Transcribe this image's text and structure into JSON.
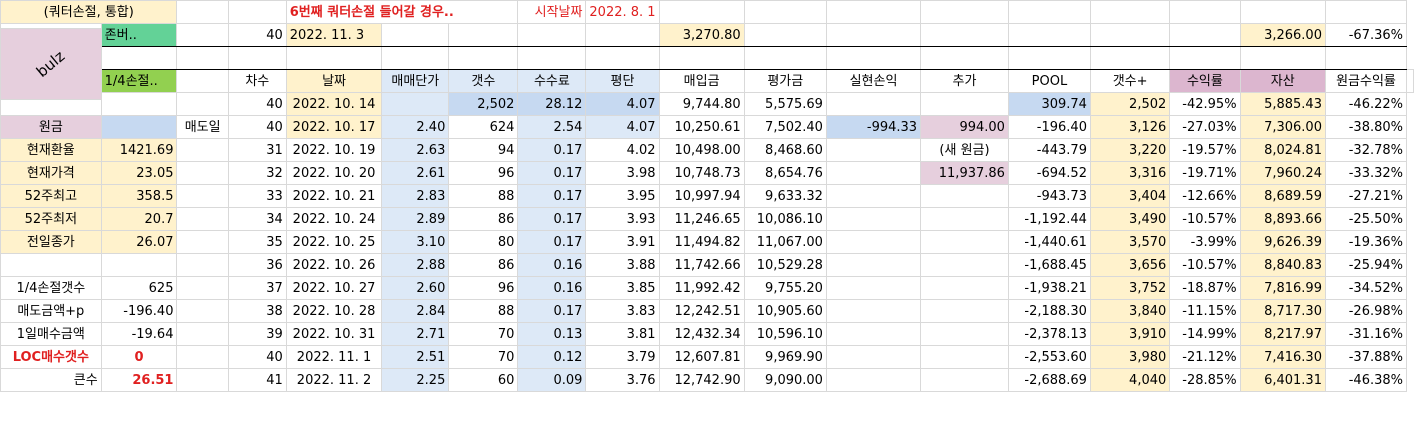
{
  "header": {
    "title": "(쿼터손절, 통합)",
    "note": "6번째 쿼터손절 들어갈 경우..",
    "start_label": "시작날짜",
    "start_date": "2022. 8. 1"
  },
  "bulz": "bulz",
  "zombie_row": {
    "label": "존버..",
    "round": "40",
    "date": "2022. 11. 3",
    "avg_value": "3,270.80",
    "asset": "3,266.00",
    "return": "-67.36%"
  },
  "quarter_label": "1/4손절..",
  "columns": [
    "차수",
    "날짜",
    "매매단가",
    "갯수",
    "수수료",
    "평단",
    "매입금",
    "평가금",
    "실현손익",
    "추가",
    "POOL",
    "갯수+",
    "수익률",
    "자산",
    "원금수익률"
  ],
  "sidebar": {
    "principal_label": "원금",
    "sell_day_label": "매도일",
    "items": [
      {
        "label": "현재환율",
        "value": "1421.69"
      },
      {
        "label": "현재가격",
        "value": "23.05"
      },
      {
        "label": "52주최고",
        "value": "358.5"
      },
      {
        "label": "52주최저",
        "value": "20.7"
      },
      {
        "label": "전일종가",
        "value": "26.07"
      }
    ],
    "stats": [
      {
        "label": "1/4손절갯수",
        "value": "625"
      },
      {
        "label": "매도금액+p",
        "value": "-196.40"
      },
      {
        "label": "1일매수금액",
        "value": "-19.64"
      },
      {
        "label": "LOC매수갯수",
        "value": "0"
      },
      {
        "label": "큰수",
        "value": "26.51"
      }
    ]
  },
  "extra": {
    "added": "994.00",
    "new_principal_label": "(새 원금)",
    "new_principal": "11,937.86",
    "realized": "-994.33"
  },
  "rows": [
    [
      "40",
      "2022. 10. 14",
      "",
      "2,502",
      "28.12",
      "4.07",
      "9,744.80",
      "5,575.69",
      "",
      "",
      "309.74",
      "2,502",
      "-42.95%",
      "5,885.43",
      "-46.22%"
    ],
    [
      "40",
      "2022. 10. 17",
      "2.40",
      "624",
      "2.54",
      "4.07",
      "10,250.61",
      "7,502.40",
      "-994.33",
      "994.00",
      "-196.40",
      "3,126",
      "-27.03%",
      "7,306.00",
      "-38.80%"
    ],
    [
      "31",
      "2022. 10. 19",
      "2.63",
      "94",
      "0.17",
      "4.02",
      "10,498.00",
      "8,468.60",
      "",
      "(새 원금)",
      "-443.79",
      "3,220",
      "-19.57%",
      "8,024.81",
      "-32.78%"
    ],
    [
      "32",
      "2022. 10. 20",
      "2.61",
      "96",
      "0.17",
      "3.98",
      "10,748.73",
      "8,654.76",
      "",
      "11,937.86",
      "-694.52",
      "3,316",
      "-19.71%",
      "7,960.24",
      "-33.32%"
    ],
    [
      "33",
      "2022. 10. 21",
      "2.83",
      "88",
      "0.17",
      "3.95",
      "10,997.94",
      "9,633.32",
      "",
      "",
      "-943.73",
      "3,404",
      "-12.66%",
      "8,689.59",
      "-27.21%"
    ],
    [
      "34",
      "2022. 10. 24",
      "2.89",
      "86",
      "0.17",
      "3.93",
      "11,246.65",
      "10,086.10",
      "",
      "",
      "-1,192.44",
      "3,490",
      "-10.57%",
      "8,893.66",
      "-25.50%"
    ],
    [
      "35",
      "2022. 10. 25",
      "3.10",
      "80",
      "0.17",
      "3.91",
      "11,494.82",
      "11,067.00",
      "",
      "",
      "-1,440.61",
      "3,570",
      "-3.99%",
      "9,626.39",
      "-19.36%"
    ],
    [
      "36",
      "2022. 10. 26",
      "2.88",
      "86",
      "0.16",
      "3.88",
      "11,742.66",
      "10,529.28",
      "",
      "",
      "-1,688.45",
      "3,656",
      "-10.57%",
      "8,840.83",
      "-25.94%"
    ],
    [
      "37",
      "2022. 10. 27",
      "2.60",
      "96",
      "0.16",
      "3.85",
      "11,992.42",
      "9,755.20",
      "",
      "",
      "-1,938.21",
      "3,752",
      "-18.87%",
      "7,816.99",
      "-34.52%"
    ],
    [
      "38",
      "2022. 10. 28",
      "2.84",
      "88",
      "0.17",
      "3.83",
      "12,242.51",
      "10,905.60",
      "",
      "",
      "-2,188.30",
      "3,840",
      "-11.15%",
      "8,717.30",
      "-26.98%"
    ],
    [
      "39",
      "2022. 10. 31",
      "2.71",
      "70",
      "0.13",
      "3.81",
      "12,432.34",
      "10,596.10",
      "",
      "",
      "-2,378.13",
      "3,910",
      "-14.99%",
      "8,217.97",
      "-31.16%"
    ],
    [
      "40",
      "2022. 11. 1",
      "2.51",
      "70",
      "0.12",
      "3.79",
      "12,607.81",
      "9,969.90",
      "",
      "",
      "-2,553.60",
      "3,980",
      "-21.12%",
      "7,416.30",
      "-37.88%"
    ],
    [
      "41",
      "2022. 11. 2",
      "2.25",
      "60",
      "0.09",
      "3.76",
      "12,742.90",
      "9,090.00",
      "",
      "",
      "-2,688.69",
      "4,040",
      "-28.85%",
      "6,401.31",
      "-46.38%"
    ]
  ]
}
